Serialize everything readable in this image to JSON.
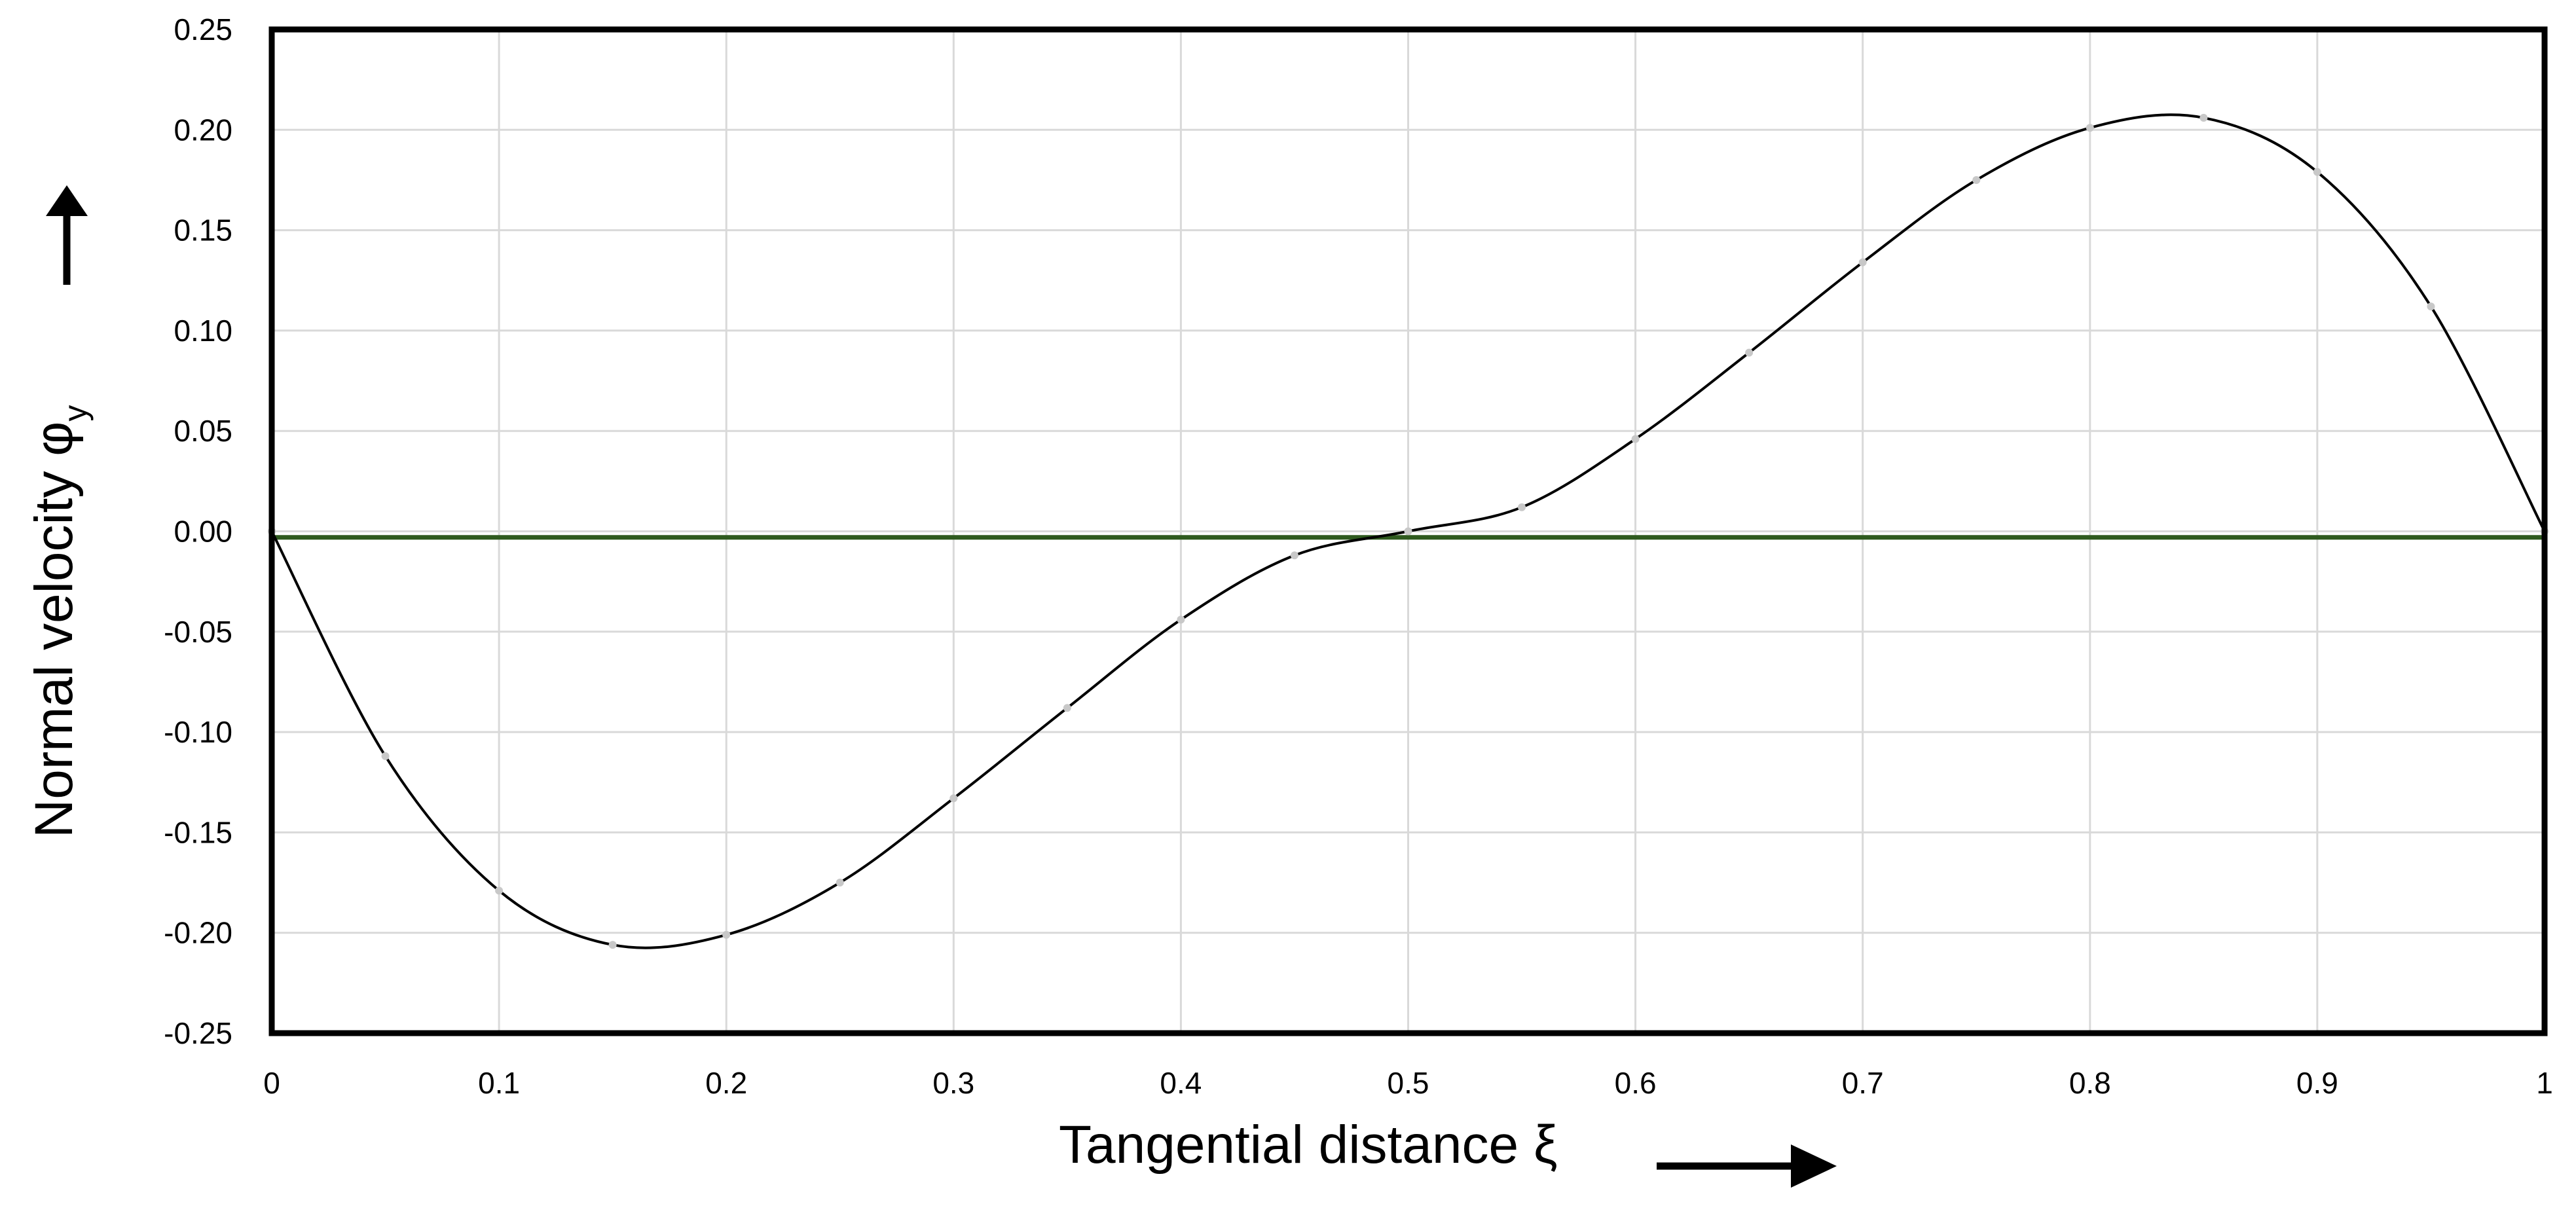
{
  "chart_data": {
    "type": "line",
    "title": "",
    "xlabel": "Tangential distance ξ",
    "ylabel_main": "Normal velocity φ",
    "ylabel_sub": "y",
    "xlim": [
      0,
      1
    ],
    "ylim": [
      -0.25,
      0.25
    ],
    "x_ticks": [
      "0",
      "0.1",
      "0.2",
      "0.3",
      "0.4",
      "0.5",
      "0.6",
      "0.7",
      "0.8",
      "0.9",
      "1"
    ],
    "y_ticks": [
      "0.25",
      "0.20",
      "0.15",
      "0.10",
      "0.05",
      "0.00",
      "-0.05",
      "-0.10",
      "-0.15",
      "-0.20",
      "-0.25"
    ],
    "grid": true,
    "legend": "none",
    "series": [
      {
        "x": [
          0,
          0.05,
          0.1,
          0.15,
          0.2,
          0.25,
          0.3,
          0.35,
          0.4,
          0.45,
          0.5,
          0.55,
          0.6,
          0.65,
          0.7,
          0.75,
          0.8,
          0.85,
          0.9,
          0.95,
          1.0
        ],
        "y": [
          0,
          -0.112,
          -0.179,
          -0.206,
          -0.201,
          -0.175,
          -0.133,
          -0.088,
          -0.044,
          -0.012,
          0.0,
          0.012,
          0.046,
          0.089,
          0.134,
          0.175,
          0.201,
          0.206,
          0.179,
          0.112,
          0
        ],
        "color": "#000000",
        "marker_color": "#c8c8c8"
      }
    ],
    "reference_line": {
      "y": -0.003,
      "color": "#2e5a1e"
    },
    "grid_color": "#d9d9d9"
  }
}
